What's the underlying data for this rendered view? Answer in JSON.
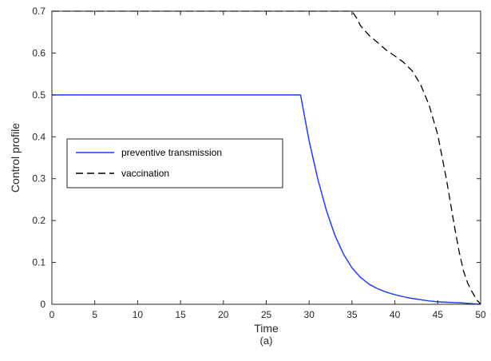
{
  "chart_data": {
    "type": "line",
    "xlabel": "Time",
    "ylabel": "Control profile",
    "sublabel": "(a)",
    "xlim": [
      0,
      50
    ],
    "ylim": [
      0,
      0.7
    ],
    "xticks": [
      0,
      5,
      10,
      15,
      20,
      25,
      30,
      35,
      40,
      45,
      50
    ],
    "yticks": [
      0,
      0.1,
      0.2,
      0.3,
      0.4,
      0.5,
      0.6,
      0.7
    ],
    "grid": false,
    "legend_position": "center-left",
    "series": [
      {
        "name": "preventive transmission",
        "color": "#1f3fff",
        "style": "solid",
        "x": [
          0,
          29,
          30,
          31,
          32,
          33,
          34,
          35,
          36,
          37,
          38,
          39,
          40,
          41,
          42,
          43,
          44,
          45,
          46,
          47,
          48,
          49,
          50
        ],
        "y": [
          0.5,
          0.5,
          0.39,
          0.3,
          0.225,
          0.165,
          0.12,
          0.087,
          0.064,
          0.048,
          0.037,
          0.029,
          0.023,
          0.018,
          0.014,
          0.011,
          0.008,
          0.006,
          0.005,
          0.004,
          0.003,
          0.0015,
          0.0
        ]
      },
      {
        "name": "vaccination",
        "color": "#000000",
        "style": "dashed",
        "x": [
          0,
          35,
          35.5,
          36,
          37,
          38,
          39,
          40,
          41,
          42,
          43,
          44,
          45,
          46,
          46.5,
          47,
          47.5,
          48,
          48.5,
          49,
          49.5,
          50
        ],
        "y": [
          0.7,
          0.7,
          0.685,
          0.665,
          0.642,
          0.625,
          0.607,
          0.593,
          0.578,
          0.558,
          0.525,
          0.475,
          0.405,
          0.3,
          0.24,
          0.18,
          0.125,
          0.08,
          0.05,
          0.03,
          0.012,
          0.0
        ]
      }
    ]
  }
}
